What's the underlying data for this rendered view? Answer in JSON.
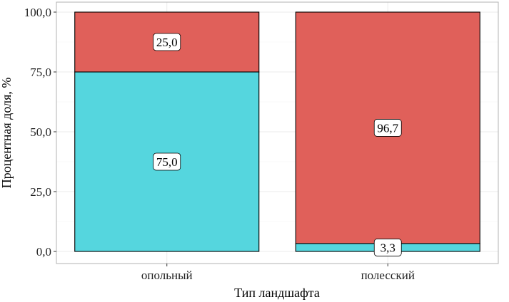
{
  "chart_data": {
    "type": "bar",
    "stacked": true,
    "categories": [
      "опольный",
      "полесский"
    ],
    "series": [
      {
        "color": "#55d6de",
        "values": [
          75.0,
          3.3
        ]
      },
      {
        "color": "#e0605a",
        "values": [
          25.0,
          96.7
        ]
      }
    ],
    "data_labels": [
      [
        "75,0",
        "3,3"
      ],
      [
        "25,0",
        "96,7"
      ]
    ],
    "xlabel": "Тип ландшафта",
    "ylabel": "Процентная доля, %",
    "ylim": [
      0,
      100
    ],
    "yticks": [
      0,
      25,
      50,
      75,
      100
    ],
    "ytick_labels": [
      "0,0",
      "25,0",
      "50,0",
      "75,0",
      "100,0"
    ],
    "grid": true,
    "legend": "none"
  }
}
